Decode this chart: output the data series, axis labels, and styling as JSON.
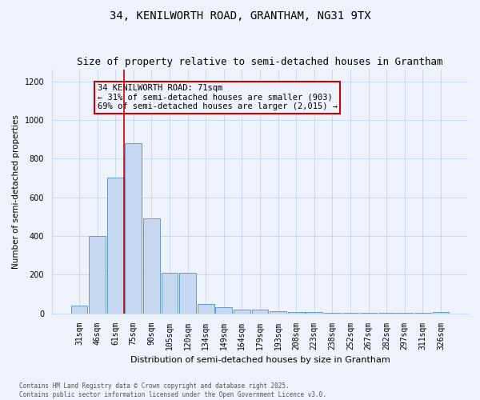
{
  "title_line1": "34, KENILWORTH ROAD, GRANTHAM, NG31 9TX",
  "title_line2": "Size of property relative to semi-detached houses in Grantham",
  "xlabel": "Distribution of semi-detached houses by size in Grantham",
  "ylabel": "Number of semi-detached properties",
  "categories": [
    "31sqm",
    "46sqm",
    "61sqm",
    "75sqm",
    "90sqm",
    "105sqm",
    "120sqm",
    "134sqm",
    "149sqm",
    "164sqm",
    "179sqm",
    "193sqm",
    "208sqm",
    "223sqm",
    "238sqm",
    "252sqm",
    "267sqm",
    "282sqm",
    "297sqm",
    "311sqm",
    "326sqm"
  ],
  "values": [
    42,
    400,
    700,
    880,
    490,
    210,
    210,
    47,
    30,
    20,
    18,
    10,
    8,
    5,
    3,
    3,
    3,
    3,
    3,
    3,
    8
  ],
  "bar_color": "#c5d8ef",
  "bar_edge_color": "#6699cc",
  "vline_x": 2.5,
  "vline_color": "#cc0000",
  "annotation_text": "34 KENILWORTH ROAD: 71sqm\n← 31% of semi-detached houses are smaller (903)\n69% of semi-detached houses are larger (2,015) →",
  "annotation_box_color": "#cc0000",
  "ylim": [
    0,
    1260
  ],
  "yticks": [
    0,
    200,
    400,
    600,
    800,
    1000,
    1200
  ],
  "grid_color": "#c8d8ee",
  "background_color": "#eef2fb",
  "footnote": "Contains HM Land Registry data © Crown copyright and database right 2025.\nContains public sector information licensed under the Open Government Licence v3.0.",
  "title_fontsize": 10,
  "subtitle_fontsize": 9,
  "annot_fontsize": 7.5,
  "xlabel_fontsize": 8,
  "ylabel_fontsize": 7.5,
  "tick_fontsize": 7,
  "footnote_fontsize": 5.5
}
